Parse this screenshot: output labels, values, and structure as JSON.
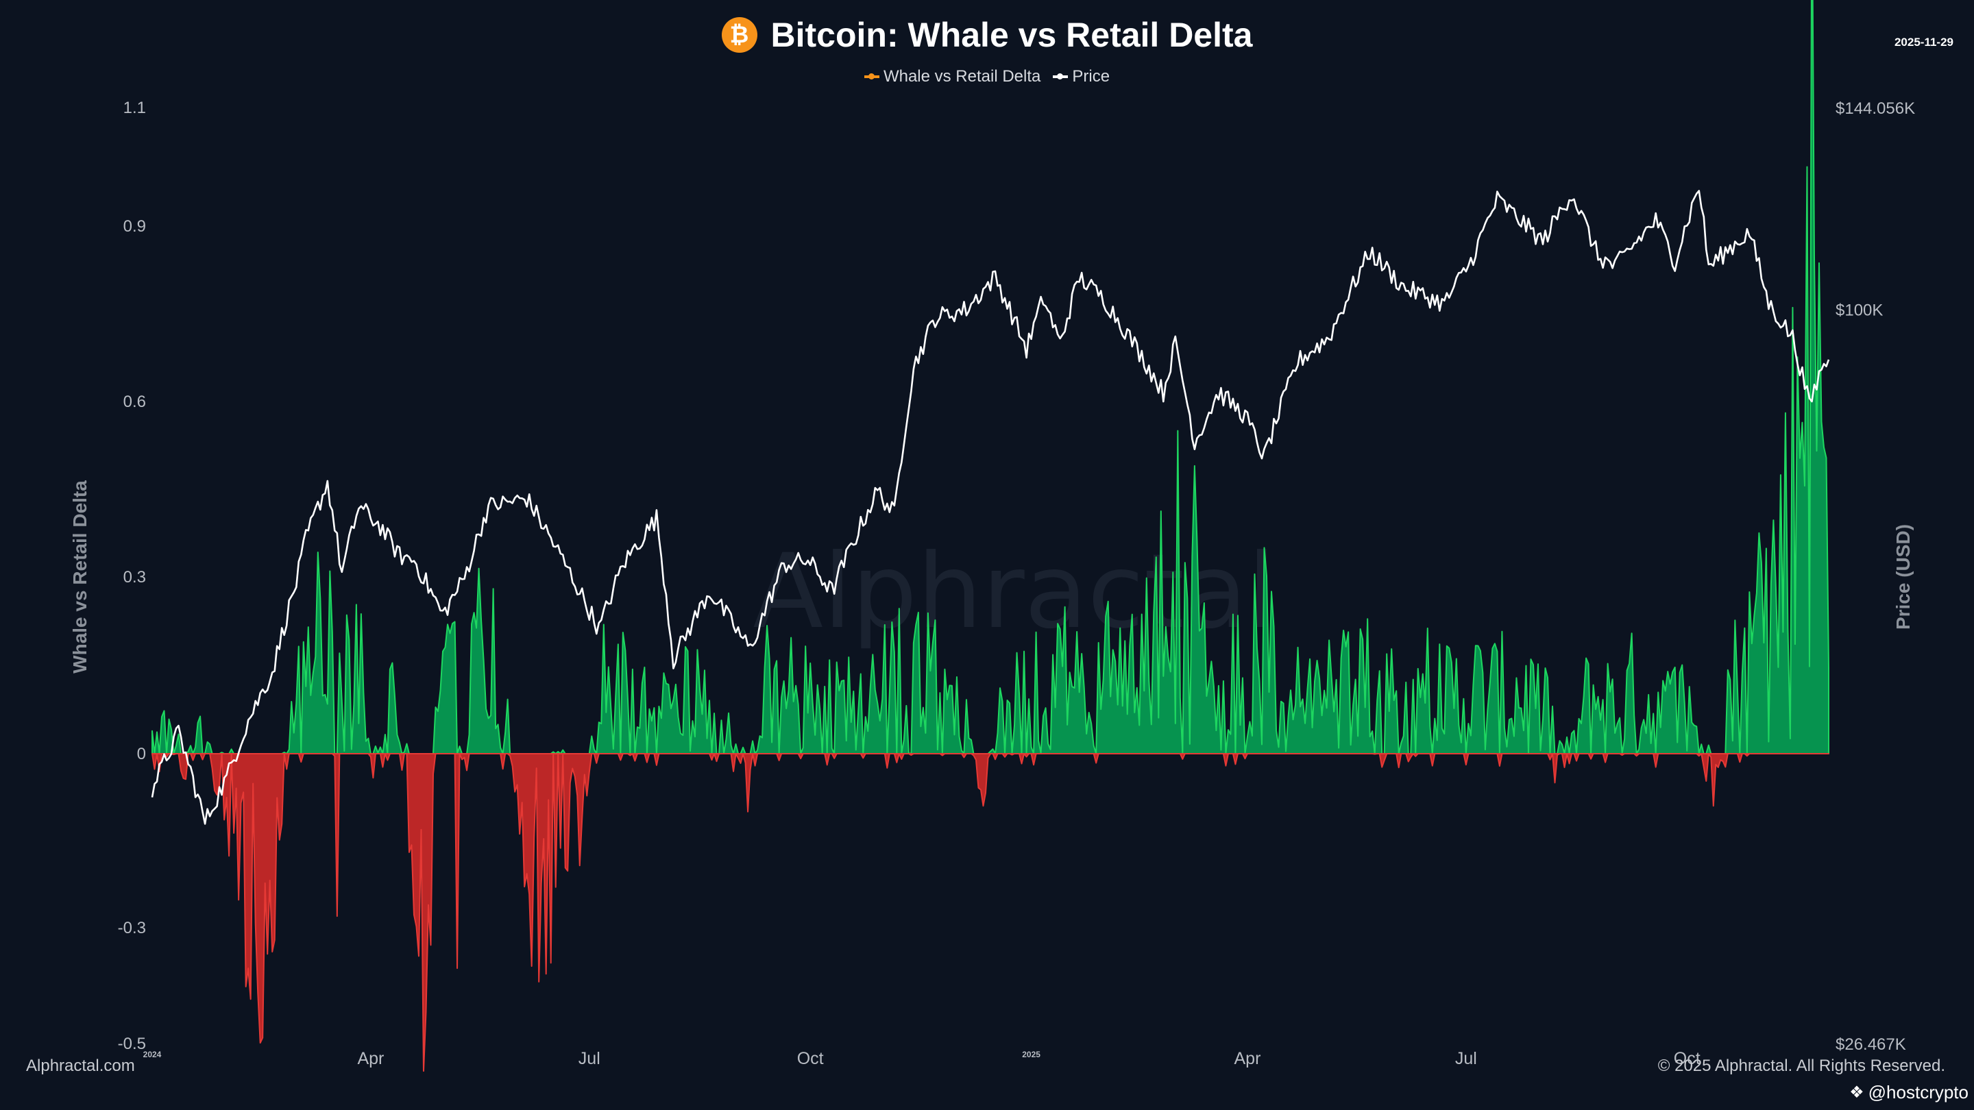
{
  "header": {
    "title": "Bitcoin: Whale vs Retail Delta",
    "date": "2025-11-29",
    "logo_symbol": "₿"
  },
  "legend": {
    "items": [
      {
        "label": "Whale vs Retail Delta",
        "color": "#f7931a"
      },
      {
        "label": "Price",
        "color": "#ffffff"
      }
    ]
  },
  "footer": {
    "left": "Alphractal.com",
    "right": "© 2025 Alphractal. All Rights Reserved.",
    "handle": "@hostcrypto",
    "handle_icon": "binance-icon"
  },
  "watermark": "Alphractal",
  "colors": {
    "background": "#0c1320",
    "positive": "#1ed760",
    "positive_fill": "#069a52",
    "negative": "#e53935",
    "negative_fill": "#c62828",
    "price_line": "#ffffff"
  },
  "chart_data": {
    "type": "area",
    "title": "Bitcoin: Whale vs Retail Delta",
    "x_range": [
      "2024-01-01",
      "2025-11-29"
    ],
    "left_axis": {
      "label": "Whale vs Retail Delta",
      "ylim": [
        -0.5,
        1.1
      ],
      "tick_labels": [
        {
          "value": 1.1,
          "label": "1.1"
        },
        {
          "value": 0.9,
          "label": "0.9"
        },
        {
          "value": 0.6,
          "label": "0.6"
        },
        {
          "value": 0.3,
          "label": "0.3"
        },
        {
          "value": 0,
          "label": "0"
        },
        {
          "value": -0.3,
          "label": "-0.3"
        },
        {
          "value": -0.5,
          "label": "-0.5"
        }
      ]
    },
    "right_axis": {
      "label": "Price (USD)",
      "scale": "log",
      "ylim": [
        26467,
        144056
      ],
      "tick_labels": [
        {
          "value": 144056,
          "label": "$144.056K"
        },
        {
          "value": 100000,
          "label": "$100K"
        },
        {
          "value": 26467,
          "label": "$26.467K"
        }
      ]
    },
    "x_ticks": [
      {
        "date": "2024-01-01",
        "label": "2024",
        "small": true
      },
      {
        "date": "2024-04-01",
        "label": "Apr"
      },
      {
        "date": "2024-07-01",
        "label": "Jul"
      },
      {
        "date": "2024-10-01",
        "label": "Oct"
      },
      {
        "date": "2025-01-01",
        "label": "2025",
        "small": true
      },
      {
        "date": "2025-04-01",
        "label": "Apr"
      },
      {
        "date": "2025-07-01",
        "label": "Jul"
      },
      {
        "date": "2025-10-01",
        "label": "Oct"
      }
    ],
    "series": [
      {
        "name": "Whale vs Retail Delta",
        "type": "area",
        "anchors": [
          [
            "2024-01-01",
            0.01
          ],
          [
            "2024-01-07",
            0.04
          ],
          [
            "2024-01-14",
            -0.02
          ],
          [
            "2024-01-20",
            0.03
          ],
          [
            "2024-01-27",
            -0.02
          ],
          [
            "2024-02-03",
            -0.1
          ],
          [
            "2024-02-10",
            -0.22
          ],
          [
            "2024-02-15",
            -0.47
          ],
          [
            "2024-02-19",
            -0.2
          ],
          [
            "2024-02-24",
            -0.05
          ],
          [
            "2024-03-01",
            0.08
          ],
          [
            "2024-03-08",
            0.12
          ],
          [
            "2024-03-13",
            0.25
          ],
          [
            "2024-03-20",
            0.1
          ],
          [
            "2024-03-27",
            0.14
          ],
          [
            "2024-04-03",
            -0.05
          ],
          [
            "2024-04-10",
            0.08
          ],
          [
            "2024-04-17",
            -0.1
          ],
          [
            "2024-04-23",
            -0.35
          ],
          [
            "2024-04-28",
            0.03
          ],
          [
            "2024-05-05",
            0.15
          ],
          [
            "2024-05-10",
            0.0
          ],
          [
            "2024-05-16",
            0.22
          ],
          [
            "2024-05-22",
            0.08
          ],
          [
            "2024-05-28",
            0.06
          ],
          [
            "2024-06-01",
            -0.05
          ],
          [
            "2024-06-08",
            -0.2
          ],
          [
            "2024-06-15",
            -0.18
          ],
          [
            "2024-06-22",
            -0.15
          ],
          [
            "2024-06-30",
            -0.08
          ],
          [
            "2024-07-05",
            0.1
          ],
          [
            "2024-07-15",
            0.1
          ],
          [
            "2024-07-25",
            0.06
          ],
          [
            "2024-08-05",
            0.1
          ],
          [
            "2024-08-15",
            0.08
          ],
          [
            "2024-08-25",
            0.05
          ],
          [
            "2024-09-05",
            -0.05
          ],
          [
            "2024-09-12",
            0.12
          ],
          [
            "2024-09-25",
            0.08
          ],
          [
            "2024-10-05",
            0.1
          ],
          [
            "2024-10-15",
            0.07
          ],
          [
            "2024-10-25",
            0.06
          ],
          [
            "2024-11-05",
            0.12
          ],
          [
            "2024-11-15",
            0.13
          ],
          [
            "2024-11-25",
            0.08
          ],
          [
            "2024-12-03",
            0.13
          ],
          [
            "2024-12-10",
            -0.07
          ],
          [
            "2024-12-17",
            0.05
          ],
          [
            "2024-12-28",
            0.08
          ],
          [
            "2025-01-10",
            0.13
          ],
          [
            "2025-01-20",
            0.1
          ],
          [
            "2025-01-30",
            0.11
          ],
          [
            "2025-02-10",
            0.12
          ],
          [
            "2025-02-18",
            0.14
          ],
          [
            "2025-02-26",
            0.27
          ],
          [
            "2025-03-05",
            0.2
          ],
          [
            "2025-03-12",
            0.15
          ],
          [
            "2025-03-22",
            0.12
          ],
          [
            "2025-04-01",
            0.14
          ],
          [
            "2025-04-07",
            0.16
          ],
          [
            "2025-04-15",
            0.1
          ],
          [
            "2025-04-25",
            0.09
          ],
          [
            "2025-05-05",
            0.1
          ],
          [
            "2025-05-15",
            0.09
          ],
          [
            "2025-05-25",
            0.1
          ],
          [
            "2025-06-05",
            0.08
          ],
          [
            "2025-06-15",
            0.1
          ],
          [
            "2025-06-25",
            0.09
          ],
          [
            "2025-07-05",
            0.1
          ],
          [
            "2025-07-15",
            0.09
          ],
          [
            "2025-07-25",
            0.1
          ],
          [
            "2025-08-05",
            0.05
          ],
          [
            "2025-08-12",
            -0.02
          ],
          [
            "2025-08-22",
            0.1
          ],
          [
            "2025-09-01",
            0.07
          ],
          [
            "2025-09-10",
            0.1
          ],
          [
            "2025-09-20",
            0.06
          ],
          [
            "2025-09-30",
            0.08
          ],
          [
            "2025-10-05",
            0.04
          ],
          [
            "2025-10-10",
            -0.04
          ],
          [
            "2025-10-15",
            0.08
          ],
          [
            "2025-10-25",
            0.14
          ],
          [
            "2025-11-02",
            0.2
          ],
          [
            "2025-11-08",
            0.3
          ],
          [
            "2025-11-15",
            0.45
          ],
          [
            "2025-11-18",
            0.7
          ],
          [
            "2025-11-21",
            0.98
          ],
          [
            "2025-11-24",
            0.65
          ],
          [
            "2025-11-27",
            0.4
          ],
          [
            "2025-11-29",
            0.36
          ]
        ],
        "events": [
          [
            "2024-02-10",
            -0.37
          ],
          [
            "2024-02-16",
            -0.49
          ],
          [
            "2024-03-15",
            0.31
          ],
          [
            "2024-03-18",
            -0.28
          ],
          [
            "2024-04-26",
            -0.33
          ],
          [
            "2024-05-07",
            -0.37
          ],
          [
            "2024-05-22",
            0.28
          ],
          [
            "2024-06-17",
            -0.23
          ],
          [
            "2024-09-05",
            -0.1
          ],
          [
            "2024-12-12",
            -0.09
          ],
          [
            "2025-03-03",
            0.55
          ],
          [
            "2025-03-10",
            0.49
          ],
          [
            "2025-04-08",
            0.35
          ],
          [
            "2025-08-07",
            -0.05
          ],
          [
            "2025-10-12",
            -0.09
          ],
          [
            "2025-11-20",
            1.0
          ]
        ]
      },
      {
        "name": "Price",
        "type": "line",
        "unit": "USD",
        "anchors": [
          [
            "2024-01-01",
            42000
          ],
          [
            "2024-01-12",
            46500
          ],
          [
            "2024-01-23",
            39500
          ],
          [
            "2024-02-01",
            42800
          ],
          [
            "2024-02-10",
            47500
          ],
          [
            "2024-02-20",
            51800
          ],
          [
            "2024-03-01",
            61000
          ],
          [
            "2024-03-05",
            66000
          ],
          [
            "2024-03-14",
            73000
          ],
          [
            "2024-03-20",
            62000
          ],
          [
            "2024-03-27",
            70000
          ],
          [
            "2024-04-05",
            67500
          ],
          [
            "2024-04-13",
            64000
          ],
          [
            "2024-04-19",
            63500
          ],
          [
            "2024-05-01",
            57500
          ],
          [
            "2024-05-10",
            61500
          ],
          [
            "2024-05-20",
            70000
          ],
          [
            "2024-06-05",
            71000
          ],
          [
            "2024-06-15",
            66000
          ],
          [
            "2024-06-25",
            61000
          ],
          [
            "2024-07-05",
            56000
          ],
          [
            "2024-07-15",
            63000
          ],
          [
            "2024-07-29",
            68500
          ],
          [
            "2024-08-05",
            53000
          ],
          [
            "2024-08-20",
            60000
          ],
          [
            "2024-09-06",
            54000
          ],
          [
            "2024-09-20",
            63000
          ],
          [
            "2024-09-30",
            63500
          ],
          [
            "2024-10-10",
            60000
          ],
          [
            "2024-10-29",
            72000
          ],
          [
            "2024-11-05",
            69000
          ],
          [
            "2024-11-13",
            90000
          ],
          [
            "2024-11-22",
            98500
          ],
          [
            "2024-12-05",
            100000
          ],
          [
            "2024-12-17",
            106000
          ],
          [
            "2024-12-30",
            93000
          ],
          [
            "2025-01-06",
            102000
          ],
          [
            "2025-01-13",
            94000
          ],
          [
            "2025-01-21",
            106000
          ],
          [
            "2025-01-31",
            102000
          ],
          [
            "2025-02-08",
            97000
          ],
          [
            "2025-02-25",
            86000
          ],
          [
            "2025-03-02",
            94000
          ],
          [
            "2025-03-10",
            78500
          ],
          [
            "2025-03-20",
            86000
          ],
          [
            "2025-03-31",
            82500
          ],
          [
            "2025-04-08",
            76500
          ],
          [
            "2025-04-22",
            91000
          ],
          [
            "2025-05-05",
            95000
          ],
          [
            "2025-05-22",
            111000
          ],
          [
            "2025-06-05",
            104000
          ],
          [
            "2025-06-22",
            101000
          ],
          [
            "2025-07-03",
            109000
          ],
          [
            "2025-07-14",
            122000
          ],
          [
            "2025-08-02",
            113000
          ],
          [
            "2025-08-14",
            123500
          ],
          [
            "2025-08-25",
            110000
          ],
          [
            "2025-09-01",
            108000
          ],
          [
            "2025-09-18",
            117500
          ],
          [
            "2025-09-26",
            109000
          ],
          [
            "2025-10-06",
            125000
          ],
          [
            "2025-10-10",
            108000
          ],
          [
            "2025-10-27",
            115000
          ],
          [
            "2025-11-04",
            101000
          ],
          [
            "2025-11-14",
            95000
          ],
          [
            "2025-11-21",
            84000
          ],
          [
            "2025-11-27",
            91000
          ],
          [
            "2025-11-29",
            90500
          ]
        ]
      }
    ]
  }
}
